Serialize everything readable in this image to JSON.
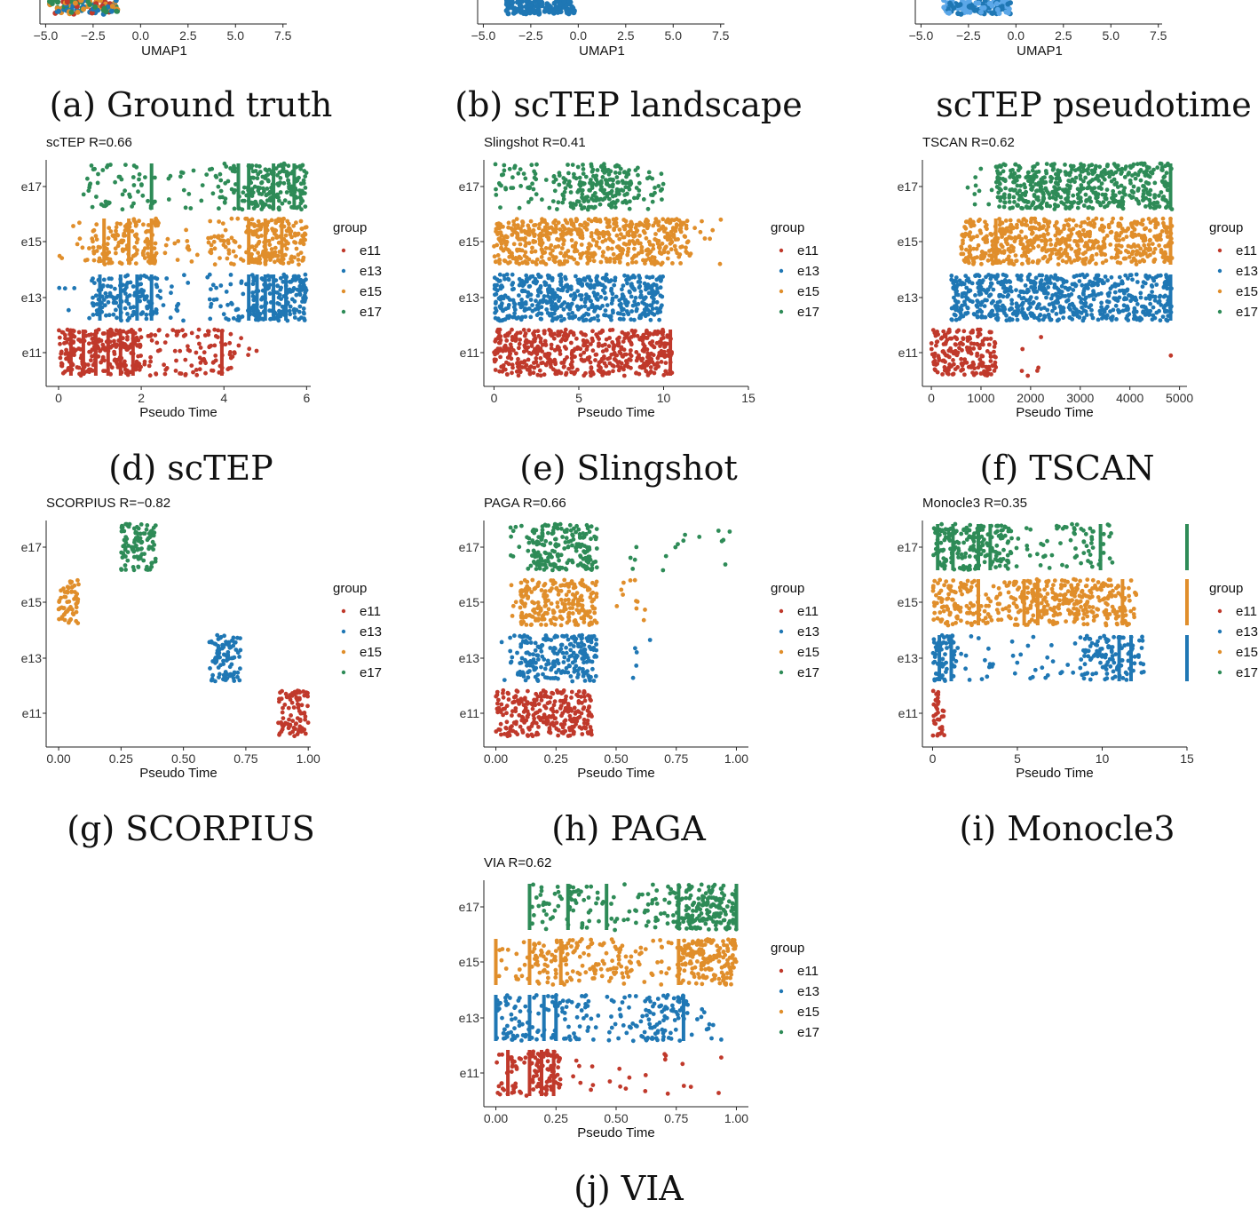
{
  "colors": {
    "e11": "#c0392b",
    "e13": "#1f77b4",
    "e15": "#e08e2b",
    "e17": "#2e8b57",
    "e17_light": "#5ba7e8"
  },
  "top_row": {
    "axis_title": "UMAP1",
    "ticks": [
      "−5.0",
      "−2.5",
      "0.0",
      "2.5",
      "5.0",
      "7.5"
    ],
    "captions": [
      "(a) Ground truth",
      "(b) scTEP landscape",
      "scTEP pseudotime"
    ]
  },
  "legend": {
    "title": "group",
    "items": [
      "e11",
      "e13",
      "e15",
      "e17"
    ]
  },
  "chart_data": [
    {
      "type": "scatter",
      "panel": "d",
      "caption": "(d) scTEP",
      "title": "scTEP R=0.66",
      "xlabel": "Pseudo Time",
      "ylabel": "",
      "xlim": [
        -0.3,
        6.1
      ],
      "x_ticks": [
        0,
        2,
        4,
        6
      ],
      "x_tick_labels": [
        "0",
        "2",
        "4",
        "6"
      ],
      "categories": [
        "e11",
        "e13",
        "e15",
        "e17"
      ],
      "series": [
        {
          "name": "e11",
          "segments": [
            [
              0,
              2,
              1.0
            ],
            [
              2,
              3.3,
              0.3
            ],
            [
              3.3,
              4.2,
              0.5
            ],
            [
              4.2,
              4.9,
              0.1
            ]
          ],
          "stripes": [
            0.3,
            0.6,
            0.9,
            1.2,
            1.5,
            1.8,
            3.95
          ]
        },
        {
          "name": "e13",
          "segments": [
            [
              0,
              0.8,
              0.05
            ],
            [
              0.8,
              2.4,
              0.7
            ],
            [
              2.4,
              3.6,
              0.1
            ],
            [
              3.6,
              4.6,
              0.3
            ],
            [
              4.6,
              6.0,
              1.0
            ]
          ],
          "stripes": [
            1.0,
            1.5,
            1.9,
            2.25,
            4.6,
            4.8,
            5.0,
            5.2,
            5.5
          ]
        },
        {
          "name": "e15",
          "segments": [
            [
              0,
              0.8,
              0.1
            ],
            [
              0.8,
              2.4,
              0.7
            ],
            [
              2.4,
              3.6,
              0.1
            ],
            [
              3.6,
              4.6,
              0.4
            ],
            [
              4.6,
              6.0,
              1.0
            ]
          ],
          "stripes": [
            1.1,
            1.7,
            2.25,
            4.6,
            5.0,
            5.4
          ]
        },
        {
          "name": "e17",
          "segments": [
            [
              0.6,
              2.4,
              0.25
            ],
            [
              2.4,
              3.8,
              0.1
            ],
            [
              3.8,
              4.6,
              0.4
            ],
            [
              4.6,
              6.0,
              1.0
            ]
          ],
          "stripes": [
            2.25,
            4.35,
            4.6,
            5.2,
            5.7
          ]
        }
      ]
    },
    {
      "type": "scatter",
      "panel": "e",
      "caption": "(e) Slingshot",
      "title": "Slingshot R=0.41",
      "xlabel": "Pseudo Time",
      "ylabel": "",
      "xlim": [
        -0.6,
        15
      ],
      "x_ticks": [
        0,
        5,
        10,
        15
      ],
      "x_tick_labels": [
        "0",
        "5",
        "10",
        "15"
      ],
      "categories": [
        "e11",
        "e13",
        "e15",
        "e17"
      ],
      "series": [
        {
          "name": "e11",
          "segments": [
            [
              0,
              10.5,
              1.0
            ]
          ],
          "stripes": [
            10.4
          ]
        },
        {
          "name": "e13",
          "segments": [
            [
              0,
              10.0,
              1.0
            ]
          ],
          "stripes": []
        },
        {
          "name": "e15",
          "segments": [
            [
              0,
              11.5,
              1.0
            ],
            [
              11.5,
              13.5,
              0.1
            ]
          ],
          "stripes": []
        },
        {
          "name": "e17",
          "segments": [
            [
              0,
              4.5,
              0.3
            ],
            [
              4.5,
              8.0,
              1.0
            ],
            [
              8.0,
              10.0,
              0.3
            ]
          ],
          "stripes": []
        }
      ]
    },
    {
      "type": "scatter",
      "panel": "f",
      "caption": "(f) TSCAN",
      "title": "TSCAN R=0.62",
      "xlabel": "Pseudo Time",
      "ylabel": "",
      "xlim": [
        -180,
        5150
      ],
      "x_ticks": [
        0,
        1000,
        2000,
        3000,
        4000,
        5000
      ],
      "x_tick_labels": [
        "0",
        "1000",
        "2000",
        "3000",
        "4000",
        "5000"
      ],
      "categories": [
        "e11",
        "e13",
        "e15",
        "e17"
      ],
      "series": [
        {
          "name": "e11",
          "segments": [
            [
              0,
              1300,
              1.0
            ],
            [
              1800,
              2600,
              0.05
            ],
            [
              4800,
              4850,
              0.05
            ]
          ],
          "stripes": []
        },
        {
          "name": "e13",
          "segments": [
            [
              400,
              4850,
              1.0
            ]
          ],
          "stripes": [
            4820
          ]
        },
        {
          "name": "e15",
          "segments": [
            [
              600,
              4850,
              1.0
            ]
          ],
          "stripes": [
            1300,
            4820
          ]
        },
        {
          "name": "e17",
          "segments": [
            [
              700,
              1300,
              0.1
            ],
            [
              1300,
              4850,
              1.0
            ]
          ],
          "stripes": [
            4820
          ]
        }
      ]
    },
    {
      "type": "scatter",
      "panel": "g",
      "caption": "(g) SCORPIUS",
      "title": "SCORPIUS R=−0.82",
      "xlabel": "Pseudo Time",
      "ylabel": "",
      "xlim": [
        -0.05,
        1.01
      ],
      "x_ticks": [
        0,
        0.25,
        0.5,
        0.75,
        1.0
      ],
      "x_tick_labels": [
        "0.00",
        "0.25",
        "0.50",
        "0.75",
        "1.00"
      ],
      "categories": [
        "e11",
        "e13",
        "e15",
        "e17"
      ],
      "series": [
        {
          "name": "e11",
          "segments": [
            [
              0.88,
              1.0,
              1.0
            ]
          ],
          "stripes": []
        },
        {
          "name": "e13",
          "segments": [
            [
              0.6,
              0.73,
              1.0
            ]
          ],
          "stripes": []
        },
        {
          "name": "e15",
          "segments": [
            [
              0,
              0.08,
              1.0
            ]
          ],
          "stripes": []
        },
        {
          "name": "e17",
          "segments": [
            [
              0.25,
              0.39,
              1.0
            ]
          ],
          "stripes": []
        }
      ]
    },
    {
      "type": "scatter",
      "panel": "h",
      "caption": "(h) PAGA",
      "title": "PAGA R=0.66",
      "xlabel": "Pseudo Time",
      "ylabel": "",
      "xlim": [
        -0.05,
        1.05
      ],
      "x_ticks": [
        0,
        0.25,
        0.5,
        0.75,
        1.0
      ],
      "x_tick_labels": [
        "0.00",
        "0.25",
        "0.50",
        "0.75",
        "1.00"
      ],
      "categories": [
        "e11",
        "e13",
        "e15",
        "e17"
      ],
      "series": [
        {
          "name": "e11",
          "segments": [
            [
              0,
              0.4,
              1.0
            ]
          ],
          "stripes": []
        },
        {
          "name": "e13",
          "segments": [
            [
              0.02,
              0.1,
              0.2
            ],
            [
              0.1,
              0.42,
              1.0
            ],
            [
              0.55,
              0.7,
              0.05
            ]
          ],
          "stripes": []
        },
        {
          "name": "e15",
          "segments": [
            [
              0.05,
              0.1,
              0.1
            ],
            [
              0.1,
              0.42,
              1.0
            ],
            [
              0.5,
              0.65,
              0.1
            ]
          ],
          "stripes": []
        },
        {
          "name": "e17",
          "segments": [
            [
              0.05,
              0.15,
              0.2
            ],
            [
              0.15,
              0.42,
              1.0
            ],
            [
              0.55,
              1.0,
              0.05
            ]
          ],
          "stripes": []
        }
      ]
    },
    {
      "type": "scatter",
      "panel": "i",
      "caption": "(i) Monocle3",
      "title": "Monocle3 R=0.35",
      "xlabel": "Pseudo Time",
      "ylabel": "",
      "xlim": [
        -0.6,
        15
      ],
      "x_ticks": [
        0,
        5,
        10,
        15
      ],
      "x_tick_labels": [
        "0",
        "5",
        "10",
        "15"
      ],
      "categories": [
        "e11",
        "e13",
        "e15",
        "e17"
      ],
      "series": [
        {
          "name": "e11",
          "segments": [
            [
              0,
              0.7,
              1.0
            ]
          ],
          "stripes": []
        },
        {
          "name": "e13",
          "segments": [
            [
              0,
              1.5,
              0.8
            ],
            [
              1.5,
              8.5,
              0.1
            ],
            [
              8.5,
              12.5,
              0.6
            ]
          ],
          "stripes": [
            0.4,
            1.1,
            11.0,
            11.7,
            15.0
          ]
        },
        {
          "name": "e15",
          "segments": [
            [
              0,
              2.5,
              0.8
            ],
            [
              2.5,
              4.5,
              0.4
            ],
            [
              4.5,
              6.5,
              0.8
            ],
            [
              6.5,
              11.5,
              0.9
            ],
            [
              11.5,
              12.0,
              0.5
            ]
          ],
          "stripes": [
            2.7,
            5.4,
            6.2,
            11.2,
            15.0
          ]
        },
        {
          "name": "e17",
          "segments": [
            [
              0,
              4.5,
              0.8
            ],
            [
              4.5,
              8.5,
              0.2
            ],
            [
              8.5,
              10.5,
              0.3
            ],
            [
              10.5,
              11.5,
              0.05
            ]
          ],
          "stripes": [
            0.3,
            1.2,
            2.7,
            3.4,
            9.9,
            15.0
          ]
        }
      ]
    },
    {
      "type": "scatter",
      "panel": "j",
      "caption": "(j) VIA",
      "title": "VIA R=0.62",
      "xlabel": "Pseudo Time",
      "ylabel": "",
      "xlim": [
        -0.05,
        1.05
      ],
      "x_ticks": [
        0,
        0.25,
        0.5,
        0.75,
        1.0
      ],
      "x_tick_labels": [
        "0.00",
        "0.25",
        "0.50",
        "0.75",
        "1.00"
      ],
      "categories": [
        "e11",
        "e13",
        "e15",
        "e17"
      ],
      "series": [
        {
          "name": "e11",
          "segments": [
            [
              0,
              0.15,
              0.4
            ],
            [
              0.15,
              0.27,
              1.0
            ],
            [
              0.3,
              0.95,
              0.05
            ]
          ],
          "stripes": [
            0.05,
            0.14,
            0.19,
            0.24
          ]
        },
        {
          "name": "e13",
          "segments": [
            [
              0,
              0.4,
              0.4
            ],
            [
              0.4,
              0.6,
              0.2
            ],
            [
              0.6,
              0.8,
              0.6
            ],
            [
              0.8,
              0.95,
              0.1
            ]
          ],
          "stripes": [
            0.0,
            0.14,
            0.2,
            0.25,
            0.78
          ]
        },
        {
          "name": "e15",
          "segments": [
            [
              0,
              0.15,
              0.15
            ],
            [
              0.15,
              0.55,
              0.5
            ],
            [
              0.55,
              0.75,
              0.2
            ],
            [
              0.75,
              1.0,
              1.0
            ]
          ],
          "stripes": [
            0.0,
            0.14,
            0.27,
            0.76
          ]
        },
        {
          "name": "e17",
          "segments": [
            [
              0.15,
              0.45,
              0.3
            ],
            [
              0.45,
              0.6,
              0.15
            ],
            [
              0.6,
              0.75,
              0.3
            ],
            [
              0.75,
              1.0,
              1.0
            ]
          ],
          "stripes": [
            0.14,
            0.3,
            0.46,
            0.76,
            1.0
          ]
        }
      ]
    }
  ]
}
